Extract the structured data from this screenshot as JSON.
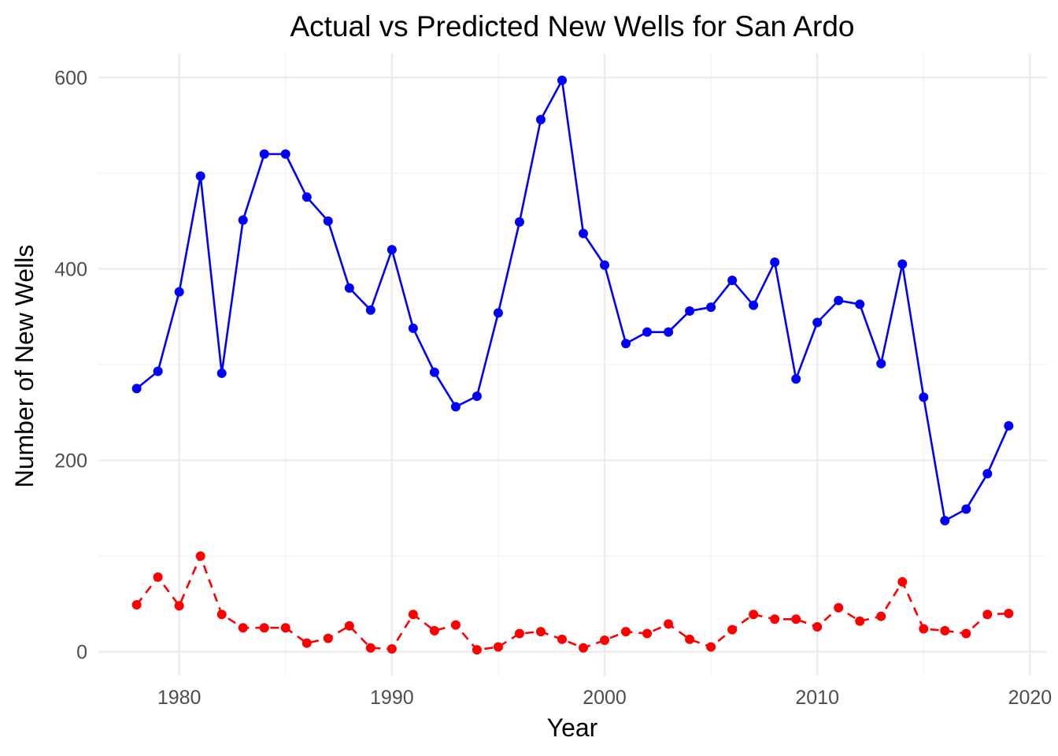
{
  "chart_data": {
    "type": "line",
    "title": "Actual vs Predicted New Wells for San Ardo",
    "xlabel": "Year",
    "ylabel": "Number of New Wells",
    "xlim": [
      1976.2,
      2020.8
    ],
    "ylim": [
      -25,
      625
    ],
    "xticks": [
      1980,
      1990,
      2000,
      2010,
      2020
    ],
    "yticks": [
      0,
      200,
      400,
      600
    ],
    "grid": true,
    "legend": "none",
    "x": [
      1978,
      1979,
      1980,
      1981,
      1982,
      1983,
      1984,
      1985,
      1986,
      1987,
      1988,
      1989,
      1990,
      1991,
      1992,
      1993,
      1994,
      1995,
      1996,
      1997,
      1998,
      1999,
      2000,
      2001,
      2002,
      2003,
      2004,
      2005,
      2006,
      2007,
      2008,
      2009,
      2010,
      2011,
      2012,
      2013,
      2014,
      2015,
      2016,
      2017,
      2018,
      2019
    ],
    "series": [
      {
        "color": "#0000ff",
        "line_style": "solid",
        "values": [
          275,
          293,
          376,
          497,
          291,
          451,
          520,
          520,
          475,
          450,
          380,
          357,
          420,
          338,
          292,
          256,
          267,
          354,
          449,
          556,
          597,
          437,
          404,
          322,
          334,
          334,
          356,
          360,
          388,
          362,
          407,
          285,
          344,
          367,
          363,
          301,
          405,
          266,
          137,
          149,
          186,
          236
        ]
      },
      {
        "color": "#ff0000",
        "line_style": "dashed",
        "values": [
          49,
          78,
          48,
          100,
          39,
          25,
          25,
          25,
          9,
          14,
          27,
          4,
          3,
          39,
          22,
          28,
          2,
          5,
          19,
          21,
          13,
          4,
          12,
          21,
          19,
          29,
          13,
          5,
          23,
          39,
          34,
          34,
          26,
          46,
          32,
          37,
          73,
          24,
          22,
          19,
          39,
          40
        ]
      }
    ]
  }
}
